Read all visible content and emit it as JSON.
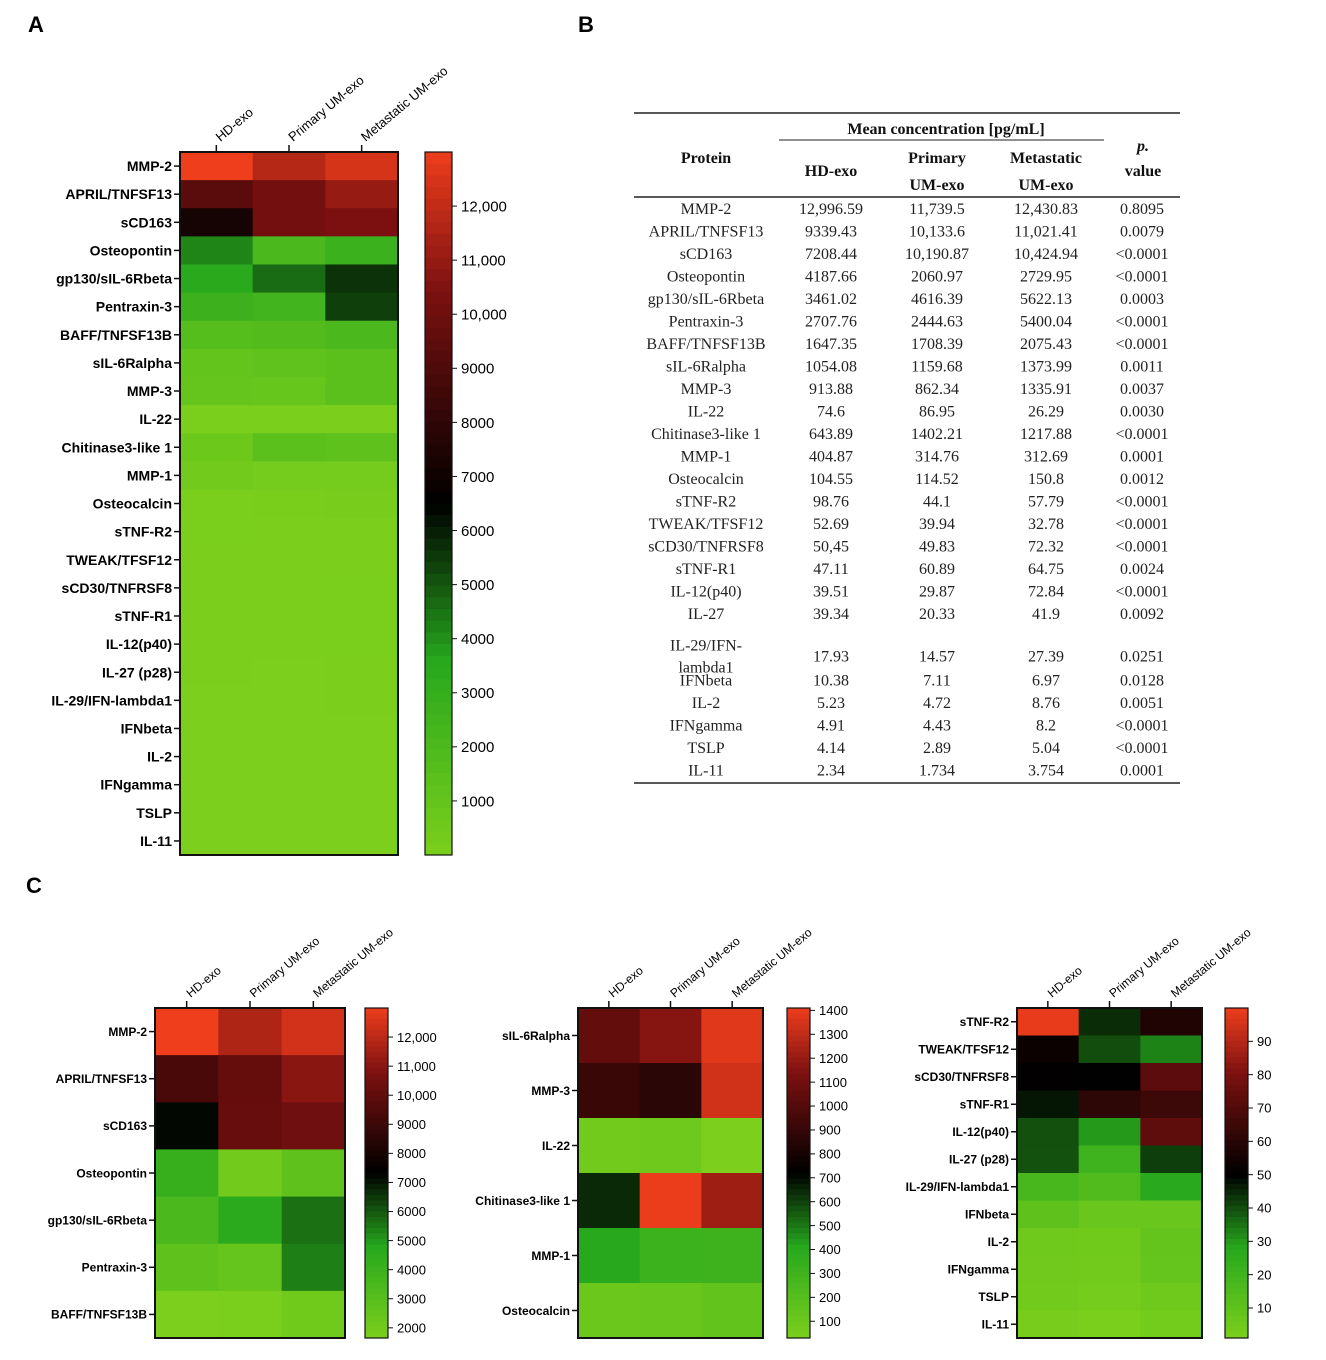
{
  "panel_letters": {
    "a": "A",
    "b": "B",
    "c": "C"
  },
  "colors": {
    "green": "#7ccf1c",
    "mid_green": "#27a81d",
    "dark": "#000000",
    "red": "#ee3e1c",
    "dark_red": "#7b1010",
    "frame": "#111111"
  },
  "chart_data": [
    {
      "id": "A",
      "type": "heatmap",
      "columns": [
        "HD-exo",
        "Primary UM-exo",
        "Metastatic UM-exo"
      ],
      "rows": [
        "MMP-2",
        "APRIL/TNFSF13",
        "sCD163",
        "Osteopontin",
        "gp130/sIL-6Rbeta",
        "Pentraxin-3",
        "BAFF/TNFSF13B",
        "sIL-6Ralpha",
        "MMP-3",
        "IL-22",
        "Chitinase3-like 1",
        "MMP-1",
        "Osteocalcin",
        "sTNF-R2",
        "TWEAK/TFSF12",
        "sCD30/TNFRSF8",
        "sTNF-R1",
        "IL-12(p40)",
        "IL-27 (p28)",
        "IL-29/IFN-lambda1",
        "IFNbeta",
        "IL-2",
        "IFNgamma",
        "TSLP",
        "IL-11"
      ],
      "values": [
        [
          12996.59,
          11739.5,
          12430.83
        ],
        [
          9339.43,
          10133.6,
          11021.41
        ],
        [
          7208.44,
          10190.87,
          10424.94
        ],
        [
          4187.66,
          2060.97,
          2729.95
        ],
        [
          3461.02,
          4616.39,
          5622.13
        ],
        [
          2707.76,
          2444.63,
          5400.04
        ],
        [
          1647.35,
          1708.39,
          2075.43
        ],
        [
          1054.08,
          1159.68,
          1373.99
        ],
        [
          913.88,
          862.34,
          1335.91
        ],
        [
          74.6,
          86.95,
          26.29
        ],
        [
          643.89,
          1402.21,
          1217.88
        ],
        [
          404.87,
          314.76,
          312.69
        ],
        [
          104.55,
          114.52,
          150.8
        ],
        [
          98.76,
          44.1,
          57.79
        ],
        [
          52.69,
          39.94,
          32.78
        ],
        [
          50.45,
          49.83,
          72.32
        ],
        [
          47.11,
          60.89,
          64.75
        ],
        [
          39.51,
          29.87,
          72.84
        ],
        [
          39.34,
          20.33,
          41.9
        ],
        [
          17.93,
          14.57,
          27.39
        ],
        [
          10.38,
          7.11,
          6.97
        ],
        [
          5.23,
          4.72,
          8.76
        ],
        [
          4.91,
          4.43,
          8.2
        ],
        [
          4.14,
          2.89,
          5.04
        ],
        [
          2.34,
          1.734,
          3.754
        ]
      ],
      "scale": {
        "min": 0,
        "max": 13000,
        "mid": 6500
      },
      "colorbar_ticks": [
        "12,000",
        "11,000",
        "10,000",
        "9000",
        "8000",
        "7000",
        "6000",
        "5000",
        "4000",
        "3000",
        "2000",
        "1000"
      ],
      "colorbar_tick_values": [
        12000,
        11000,
        10000,
        9000,
        8000,
        7000,
        6000,
        5000,
        4000,
        3000,
        2000,
        1000
      ]
    },
    {
      "id": "C1",
      "type": "heatmap",
      "columns": [
        "HD-exo",
        "Primary UM-exo",
        "Metastatic UM-exo"
      ],
      "rows": [
        "MMP-2",
        "APRIL/TNFSF13",
        "sCD163",
        "Osteopontin",
        "gp130/sIL-6Rbeta",
        "Pentraxin-3",
        "BAFF/TNFSF13B"
      ],
      "values": [
        [
          12996.59,
          11739.5,
          12430.83
        ],
        [
          9339.43,
          10133.6,
          11021.41
        ],
        [
          7208.44,
          10190.87,
          10424.94
        ],
        [
          4187.66,
          2060.97,
          2729.95
        ],
        [
          3461.02,
          4616.39,
          5622.13
        ],
        [
          2707.76,
          2444.63,
          5400.04
        ],
        [
          1647.35,
          1708.39,
          2075.43
        ]
      ],
      "scale": {
        "min": 1650,
        "max": 13000,
        "mid": 7325
      },
      "colorbar_ticks": [
        "12,000",
        "11,000",
        "10,000",
        "9000",
        "8000",
        "7000",
        "6000",
        "5000",
        "4000",
        "3000",
        "2000"
      ],
      "colorbar_tick_values": [
        12000,
        11000,
        10000,
        9000,
        8000,
        7000,
        6000,
        5000,
        4000,
        3000,
        2000
      ]
    },
    {
      "id": "C2",
      "type": "heatmap",
      "columns": [
        "HD-exo",
        "Primary UM-exo",
        "Metastatic UM-exo"
      ],
      "rows": [
        "sIL-6Ralpha",
        "MMP-3",
        "IL-22",
        "Chitinase3-like 1",
        "MMP-1",
        "Osteocalcin"
      ],
      "values": [
        [
          1054.08,
          1159.68,
          1373.99
        ],
        [
          913.88,
          862.34,
          1335.91
        ],
        [
          74.6,
          86.95,
          26.29
        ],
        [
          643.89,
          1402.21,
          1217.88
        ],
        [
          404.87,
          314.76,
          312.69
        ],
        [
          104.55,
          114.52,
          150.8
        ]
      ],
      "scale": {
        "min": 30,
        "max": 1410,
        "mid": 720
      },
      "colorbar_ticks": [
        "1400",
        "1300",
        "1200",
        "1100",
        "1000",
        "900",
        "800",
        "700",
        "600",
        "500",
        "400",
        "300",
        "200",
        "100"
      ],
      "colorbar_tick_values": [
        1400,
        1300,
        1200,
        1100,
        1000,
        900,
        800,
        700,
        600,
        500,
        400,
        300,
        200,
        100
      ]
    },
    {
      "id": "C3",
      "type": "heatmap",
      "columns": [
        "HD-exo",
        "Primary UM-exo",
        "Metastatic UM-exo"
      ],
      "rows": [
        "sTNF-R2",
        "TWEAK/TFSF12",
        "sCD30/TNFRSF8",
        "sTNF-R1",
        "IL-12(p40)",
        "IL-27 (p28)",
        "IL-29/IFN-lambda1",
        "IFNbeta",
        "IL-2",
        "IFNgamma",
        "TSLP",
        "IL-11"
      ],
      "values": [
        [
          98.76,
          44.1,
          57.79
        ],
        [
          52.69,
          39.94,
          32.78
        ],
        [
          50.45,
          49.83,
          72.32
        ],
        [
          47.11,
          60.89,
          64.75
        ],
        [
          39.51,
          29.87,
          72.84
        ],
        [
          39.34,
          20.33,
          41.9
        ],
        [
          17.93,
          14.57,
          27.39
        ],
        [
          10.38,
          7.11,
          6.97
        ],
        [
          5.23,
          4.72,
          8.76
        ],
        [
          4.91,
          4.43,
          8.2
        ],
        [
          4.14,
          2.89,
          5.04
        ],
        [
          2.34,
          1.734,
          3.754
        ]
      ],
      "scale": {
        "min": 1,
        "max": 100,
        "mid": 50
      },
      "colorbar_ticks": [
        "90",
        "80",
        "70",
        "60",
        "50",
        "40",
        "30",
        "20",
        "10"
      ],
      "colorbar_tick_values": [
        90,
        80,
        70,
        60,
        50,
        40,
        30,
        20,
        10
      ]
    }
  ],
  "table": {
    "header": {
      "protein": "Protein",
      "mean": "Mean concentration [pg/mL]",
      "hd": "HD-exo",
      "primary_1": "Primary",
      "primary_2": "UM-exo",
      "meta_1": "Metastatic",
      "meta_2": "UM-exo",
      "p_1": "p.",
      "p_2": "value"
    },
    "rows": [
      [
        "MMP-2",
        "12,996.59",
        "11,739.5",
        "12,430.83",
        "0.8095"
      ],
      [
        "APRIL/TNFSF13",
        "9339.43",
        "10,133.6",
        "11,021.41",
        "0.0079"
      ],
      [
        "sCD163",
        "7208.44",
        "10,190.87",
        "10,424.94",
        "<0.0001"
      ],
      [
        "Osteopontin",
        "4187.66",
        "2060.97",
        "2729.95",
        "<0.0001"
      ],
      [
        "gp130/sIL-6Rbeta",
        "3461.02",
        "4616.39",
        "5622.13",
        "0.0003"
      ],
      [
        "Pentraxin-3",
        "2707.76",
        "2444.63",
        "5400.04",
        "<0.0001"
      ],
      [
        "BAFF/TNFSF13B",
        "1647.35",
        "1708.39",
        "2075.43",
        "<0.0001"
      ],
      [
        "sIL-6Ralpha",
        "1054.08",
        "1159.68",
        "1373.99",
        "0.0011"
      ],
      [
        "MMP-3",
        "913.88",
        "862.34",
        "1335.91",
        "0.0037"
      ],
      [
        "IL-22",
        "74.6",
        "86.95",
        "26.29",
        "0.0030"
      ],
      [
        "Chitinase3-like 1",
        "643.89",
        "1402.21",
        "1217.88",
        "<0.0001"
      ],
      [
        "MMP-1",
        "404.87",
        "314.76",
        "312.69",
        "0.0001"
      ],
      [
        "Osteocalcin",
        "104.55",
        "114.52",
        "150.8",
        "0.0012"
      ],
      [
        "sTNF-R2",
        "98.76",
        "44.1",
        "57.79",
        "<0.0001"
      ],
      [
        "TWEAK/TFSF12",
        "52.69",
        "39.94",
        "32.78",
        "<0.0001"
      ],
      [
        "sCD30/TNFRSF8",
        "50,45",
        "49.83",
        "72.32",
        "<0.0001"
      ],
      [
        "sTNF-R1",
        "47.11",
        "60.89",
        "64.75",
        "0.0024"
      ],
      [
        "IL-12(p40)",
        "39.51",
        "29.87",
        "72.84",
        "<0.0001"
      ],
      [
        "IL-27",
        "39.34",
        "20.33",
        "41.9",
        "0.0092"
      ],
      [
        "IL-29/IFN-lambda1",
        "17.93",
        "14.57",
        "27.39",
        "0.0251"
      ],
      [
        "IFNbeta",
        "10.38",
        "7.11",
        "6.97",
        "0.0128"
      ],
      [
        "IL-2",
        "5.23",
        "4.72",
        "8.76",
        "0.0051"
      ],
      [
        "IFNgamma",
        "4.91",
        "4.43",
        "8.2",
        "<0.0001"
      ],
      [
        "TSLP",
        "4.14",
        "2.89",
        "5.04",
        "<0.0001"
      ],
      [
        "IL-11",
        "2.34",
        "1.734",
        "3.754",
        "0.0001"
      ]
    ],
    "two_line_protein": {
      "row_index": 19,
      "line1": "IL-29/IFN-",
      "line2": "lambda1"
    }
  }
}
